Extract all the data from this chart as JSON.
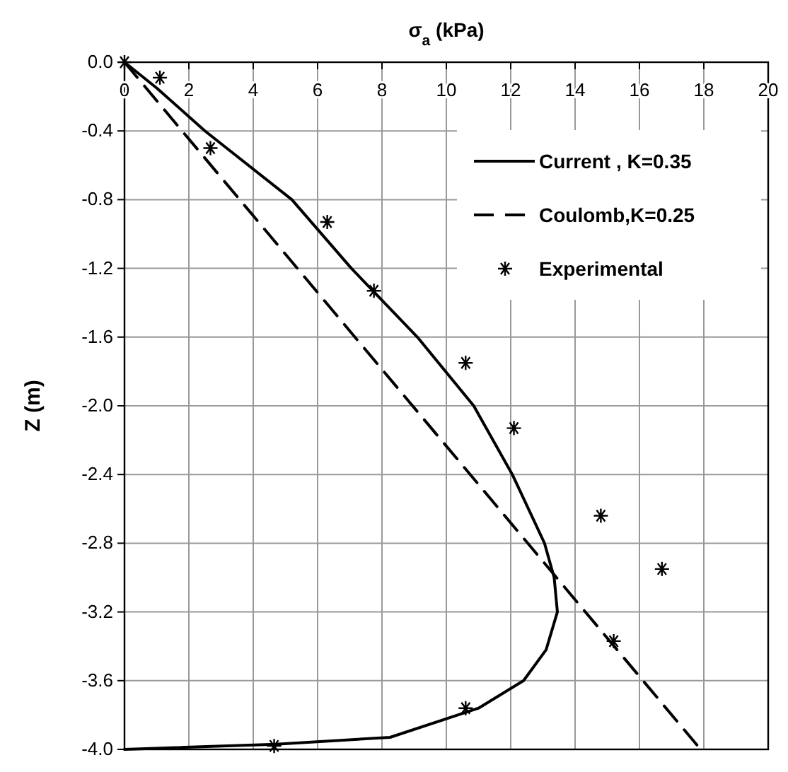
{
  "chart_data": {
    "type": "line",
    "xlabel": "σ$_{a}$ (kPa)",
    "ylabel": "Z (m)",
    "xlim": [
      0,
      20
    ],
    "xticks": [
      0,
      2,
      4,
      6,
      8,
      10,
      12,
      14,
      16,
      18,
      20
    ],
    "ylim": [
      -4.0,
      0.0
    ],
    "yticks": [
      {
        "value": 0,
        "label": "0.0"
      },
      {
        "value": -0.4,
        "label": "-0.4"
      },
      {
        "value": -0.8,
        "label": "-0.8"
      },
      {
        "value": -1.2,
        "label": "-1.2"
      },
      {
        "value": -1.6,
        "label": "-1.6"
      },
      {
        "value": -2.0,
        "label": "-2.0"
      },
      {
        "value": -2.4,
        "label": "-2.4"
      },
      {
        "value": -2.8,
        "label": "-2.8"
      },
      {
        "value": -3.2,
        "label": "-3.2"
      },
      {
        "value": -3.6,
        "label": "-3.6"
      },
      {
        "value": -4.0,
        "label": "-4.0"
      }
    ],
    "grid": true,
    "legend": "top right",
    "series": [
      {
        "name": "Current , K=0.35",
        "color": "#000000",
        "line_style": "solid",
        "marker": "none",
        "x": [
          0,
          1,
          2.5,
          5.2,
          7.05,
          9.1,
          10.85,
          12.05,
          13.05,
          13.35,
          13.45,
          13.1,
          12.4,
          11,
          8.25,
          4.7,
          0
        ],
        "values": [
          0,
          -0.15,
          -0.4,
          -0.8,
          -1.2,
          -1.6,
          -2.0,
          -2.4,
          -2.8,
          -3.0,
          -3.2,
          -3.42,
          -3.6,
          -3.76,
          -3.93,
          -3.97,
          -4.0
        ]
      },
      {
        "name": "Coulomb,K=0.25",
        "color": "#000000",
        "line_style": "dashed",
        "marker": "none",
        "x": [
          0,
          17.9
        ],
        "values": [
          0,
          -4.0
        ]
      },
      {
        "name": "Experimental",
        "type": "scatter",
        "color": "#000000",
        "marker": "cross",
        "x": [
          0,
          1.1,
          2.67,
          6.3,
          7.75,
          10.6,
          12.1,
          14.8,
          16.7,
          15.2,
          10.6,
          4.65
        ],
        "values": [
          0,
          -0.09,
          -0.5,
          -0.93,
          -1.33,
          -1.75,
          -2.13,
          -2.64,
          -2.95,
          -3.37,
          -3.76,
          -3.98
        ]
      }
    ]
  }
}
